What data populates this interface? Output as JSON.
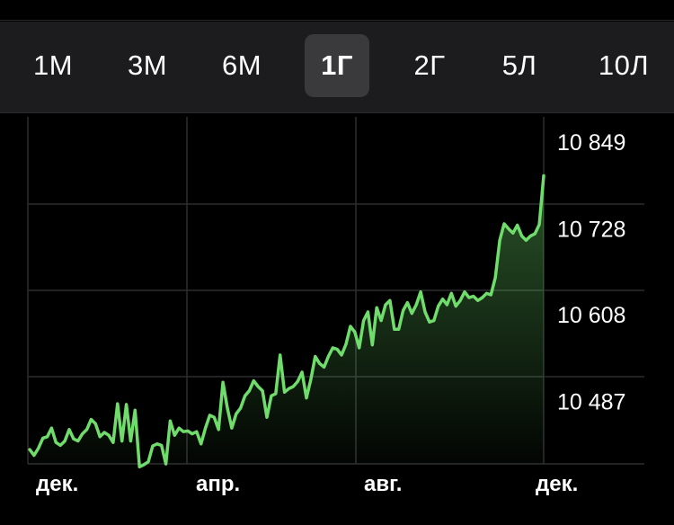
{
  "ranges": [
    {
      "label": "1М",
      "active": false
    },
    {
      "label": "3М",
      "active": false
    },
    {
      "label": "6М",
      "active": false
    },
    {
      "label": "1Г",
      "active": true
    },
    {
      "label": "2Г",
      "active": false
    },
    {
      "label": "5Л",
      "active": false
    },
    {
      "label": "10Л",
      "active": false
    }
  ],
  "chart_data": {
    "type": "area",
    "title": "",
    "xlabel": "",
    "ylabel": "",
    "line_color": "#6fdc6b",
    "y_ticks": [
      {
        "value": 10849,
        "label": "10 849"
      },
      {
        "value": 10728,
        "label": "10 728"
      },
      {
        "value": 10608,
        "label": "10 608"
      },
      {
        "value": 10487,
        "label": "10 487"
      }
    ],
    "x_ticks": [
      {
        "index": 0,
        "label": "дек."
      },
      {
        "index": 36,
        "label": "апр."
      },
      {
        "index": 73,
        "label": "авг."
      },
      {
        "index": 110,
        "label": "дек."
      }
    ],
    "ylim": [
      10366,
      10849
    ],
    "series": [
      {
        "values": [
          10420,
          10412,
          10422,
          10436,
          10438,
          10450,
          10430,
          10426,
          10432,
          10448,
          10435,
          10432,
          10442,
          10448,
          10462,
          10456,
          10438,
          10444,
          10440,
          10430,
          10484,
          10432,
          10483,
          10432,
          10475,
          10396,
          10399,
          10403,
          10425,
          10428,
          10426,
          10400,
          10460,
          10440,
          10450,
          10445,
          10446,
          10442,
          10445,
          10428,
          10450,
          10468,
          10465,
          10448,
          10514,
          10478,
          10450,
          10470,
          10478,
          10495,
          10502,
          10516,
          10508,
          10502,
          10465,
          10495,
          10498,
          10552,
          10500,
          10505,
          10508,
          10515,
          10528,
          10492,
          10518,
          10550,
          10540,
          10535,
          10550,
          10562,
          10560,
          10552,
          10567,
          10592,
          10584,
          10562,
          10600,
          10612,
          10566,
          10618,
          10600,
          10622,
          10628,
          10588,
          10588,
          10614,
          10625,
          10610,
          10622,
          10640,
          10612,
          10598,
          10600,
          10620,
          10630,
          10622,
          10638,
          10620,
          10628,
          10640,
          10632,
          10634,
          10628,
          10632,
          10638,
          10636,
          10660,
          10712,
          10735,
          10728,
          10722,
          10733,
          10718,
          10712,
          10718,
          10721,
          10734,
          10802
        ]
      }
    ]
  }
}
